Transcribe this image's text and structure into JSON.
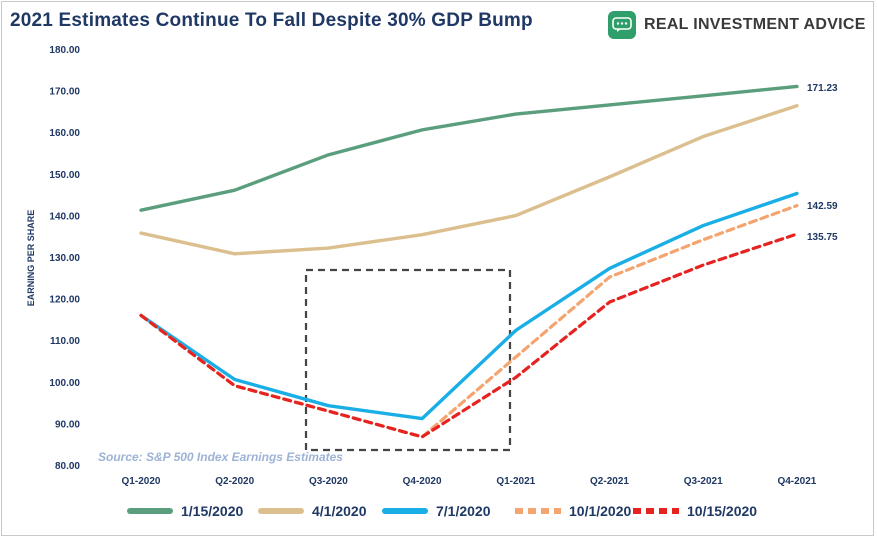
{
  "header": {
    "title": "2021 Estimates Continue To Fall Despite 30% GDP Bump",
    "logo_text": "REAL INVESTMENT ADVICE",
    "logo_icon": "chat-bubble-icon",
    "logo_color": "#2e9e6a"
  },
  "chart_data": {
    "type": "line",
    "ylabel": "EARNING PER SHARE",
    "ylim": [
      80,
      180
    ],
    "yticks": [
      "80.00",
      "90.00",
      "100.00",
      "110.00",
      "120.00",
      "130.00",
      "140.00",
      "150.00",
      "160.00",
      "170.00",
      "180.00"
    ],
    "categories": [
      "Q1-2020",
      "Q2-2020",
      "Q3-2020",
      "Q4-2020",
      "Q1-2021",
      "Q2-2021",
      "Q3-2021",
      "Q4-2021"
    ],
    "source": "Source: S&P 500 Index Earnings Estimates",
    "grid": false,
    "legend": "bottom",
    "series": [
      {
        "name": "1/15/2020",
        "color": "#5b9e7e",
        "dashed": false,
        "values": [
          141.5,
          146.3,
          154.8,
          160.8,
          164.6,
          166.8,
          169.0,
          171.23
        ]
      },
      {
        "name": "4/1/2020",
        "color": "#dcbf8e",
        "dashed": false,
        "values": [
          136.0,
          131.0,
          132.4,
          135.6,
          140.2,
          149.5,
          159.2,
          166.6
        ]
      },
      {
        "name": "7/1/2020",
        "color": "#1aaee6",
        "dashed": false,
        "values": [
          116.2,
          100.8,
          94.5,
          91.4,
          112.6,
          127.5,
          137.8,
          145.5
        ]
      },
      {
        "name": "10/1/2020",
        "color": "#f4a46e",
        "dashed": true,
        "values": [
          116.2,
          99.3,
          93.2,
          87.0,
          106.2,
          125.4,
          134.4,
          142.59
        ]
      },
      {
        "name": "10/15/2020",
        "color": "#e52421",
        "dashed": true,
        "values": [
          116.2,
          99.3,
          93.2,
          87.0,
          101.3,
          119.4,
          128.3,
          135.75
        ]
      }
    ],
    "annotations": [
      "171.23",
      "142.59",
      "135.75"
    ]
  }
}
